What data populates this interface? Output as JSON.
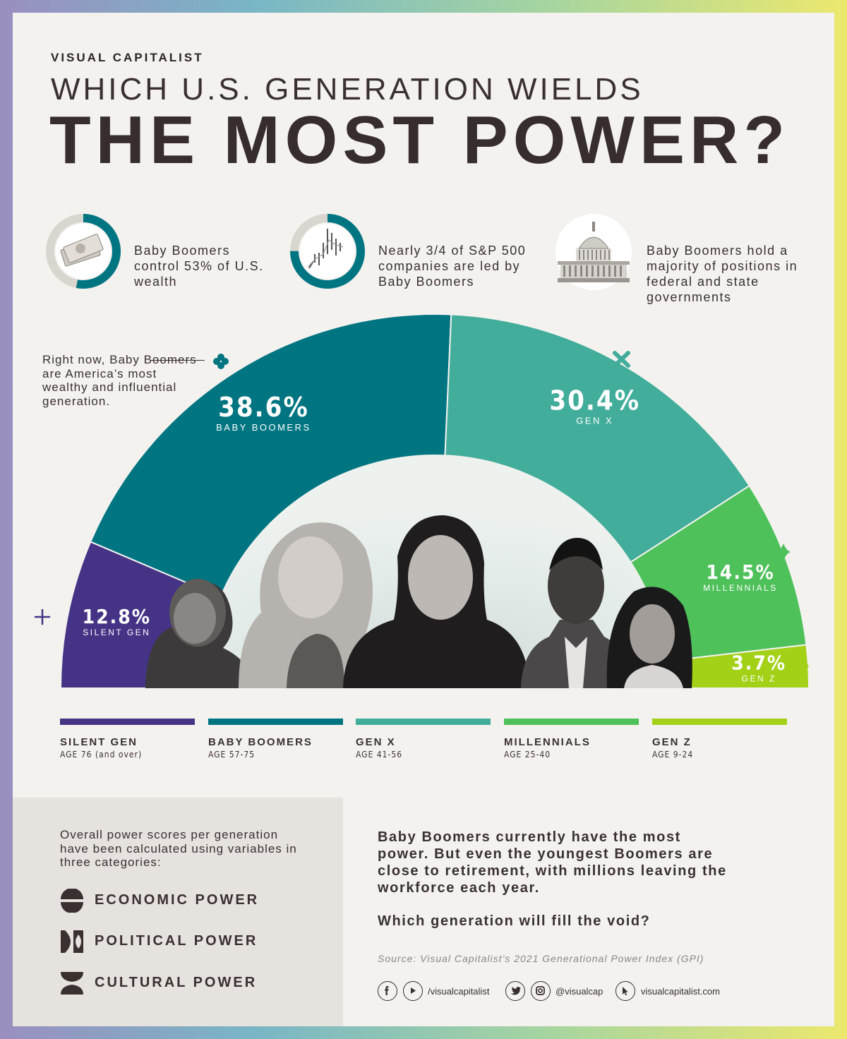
{
  "header": {
    "brand": "VISUAL CAPITALIST",
    "title_line1": "WHICH U.S. GENERATION WIELDS",
    "title_line2": "THE MOST POWER?"
  },
  "stats": [
    {
      "text": "Baby Boomers control 53% of U.S. wealth",
      "value_fraction": 0.53,
      "icon": "money-icon"
    },
    {
      "text": "Nearly 3/4 of S&P 500 companies are led by Baby Boomers",
      "value_fraction": 0.75,
      "icon": "stock-chart-icon"
    },
    {
      "text": "Baby Boomers hold a majority of positions in federal and state governments",
      "icon": "capitol-icon"
    }
  ],
  "annotation": "Right now, Baby Boomers are America’s most wealthy and influential generation.",
  "chart_data": {
    "type": "pie",
    "subtype": "semicircle-donut",
    "slices": [
      {
        "label": "SILENT GEN",
        "value": 12.8,
        "display": "12.8%",
        "color": "#463386"
      },
      {
        "label": "BABY BOOMERS",
        "value": 38.6,
        "display": "38.6%",
        "color": "#007582"
      },
      {
        "label": "GEN X",
        "value": 30.4,
        "display": "30.4%",
        "color": "#42ad9b"
      },
      {
        "label": "MILLENNIALS",
        "value": 14.5,
        "display": "14.5%",
        "color": "#4fc15b"
      },
      {
        "label": "GEN Z",
        "value": 3.7,
        "display": "3.7%",
        "color": "#a3d117"
      }
    ]
  },
  "legend": [
    {
      "name": "SILENT GEN",
      "age": "AGE 76 (and over)",
      "color": "#463386"
    },
    {
      "name": "BABY BOOMERS",
      "age": "AGE 57-75",
      "color": "#007582"
    },
    {
      "name": "GEN X",
      "age": "AGE 41-56",
      "color": "#42ad9b"
    },
    {
      "name": "MILLENNIALS",
      "age": "AGE 25-40",
      "color": "#4fc15b"
    },
    {
      "name": "GEN Z",
      "age": "AGE 9-24",
      "color": "#a3d117"
    }
  ],
  "categories": {
    "intro": "Overall power scores per generation have been calculated using variables in three categories:",
    "items": [
      {
        "label": "ECONOMIC POWER",
        "icon": "economic-power-icon"
      },
      {
        "label": "POLITICAL POWER",
        "icon": "political-power-icon"
      },
      {
        "label": "CULTURAL POWER",
        "icon": "cultural-power-icon"
      }
    ]
  },
  "summary": "Baby Boomers currently have the most power. But even the youngest Boomers are close to retirement, with millions leaving the workforce each year.",
  "question": "Which generation will fill the void?",
  "source": "Source: Visual Capitalist’s 2021 Generational Power Index (GPI)",
  "social": {
    "facebook_youtube": "/visualcapitalist",
    "twitter_instagram": "@visualcap",
    "website": "visualcapitalist.com"
  },
  "colors": {
    "teal_ring": "#007582",
    "dark_text": "#3a3030"
  }
}
